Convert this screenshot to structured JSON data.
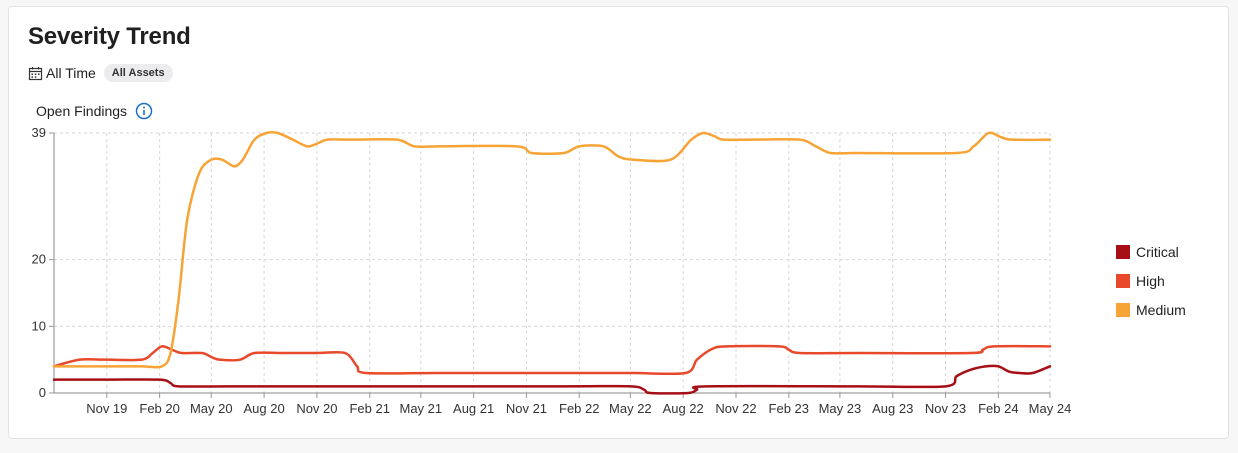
{
  "header": {
    "title": "Severity Trend",
    "period": "All Time",
    "asset_filter": "All Assets",
    "metric_label": "Open Findings"
  },
  "chart_data": {
    "type": "line",
    "title": "Severity Trend",
    "xlabel": "",
    "ylabel": "Open Findings",
    "ylim": [
      0,
      39
    ],
    "y_ticks": [
      0,
      10,
      20,
      39
    ],
    "x_ticks": [
      "Nov 19",
      "Feb 20",
      "May 20",
      "Aug 20",
      "Nov 20",
      "Feb 21",
      "May 21",
      "Aug 21",
      "Nov 21",
      "Feb 22",
      "May 22",
      "Aug 22",
      "Nov 22",
      "Feb 23",
      "May 23",
      "Aug 23",
      "Nov 23",
      "Feb 24",
      "May 24"
    ],
    "xlim": [
      "2019-08-01",
      "2024-05-01"
    ],
    "grid": true,
    "legend_position": "right",
    "series": [
      {
        "name": "Critical",
        "color": "#a50f15",
        "points": [
          [
            "2019-08-01",
            2
          ],
          [
            "2019-11-01",
            2
          ],
          [
            "2020-02-01",
            2
          ],
          [
            "2020-02-20",
            1.5
          ],
          [
            "2020-03-05",
            1
          ],
          [
            "2020-06-01",
            1
          ],
          [
            "2021-01-01",
            1
          ],
          [
            "2022-01-01",
            1
          ],
          [
            "2022-05-01",
            1
          ],
          [
            "2022-05-25",
            0.5
          ],
          [
            "2022-06-05",
            0
          ],
          [
            "2022-08-10",
            0
          ],
          [
            "2022-08-25",
            0.5
          ],
          [
            "2022-09-10",
            1
          ],
          [
            "2023-06-01",
            1
          ],
          [
            "2023-11-01",
            1
          ],
          [
            "2023-11-20",
            2.5
          ],
          [
            "2023-12-15",
            3.5
          ],
          [
            "2024-01-10",
            4
          ],
          [
            "2024-02-01",
            4
          ],
          [
            "2024-02-20",
            3.2
          ],
          [
            "2024-03-10",
            3
          ],
          [
            "2024-04-01",
            3
          ],
          [
            "2024-05-01",
            4
          ]
        ]
      },
      {
        "name": "High",
        "color": "#e8492b",
        "points": [
          [
            "2019-08-01",
            4
          ],
          [
            "2019-09-15",
            5
          ],
          [
            "2019-11-01",
            5
          ],
          [
            "2020-01-01",
            5
          ],
          [
            "2020-01-20",
            6
          ],
          [
            "2020-02-05",
            7
          ],
          [
            "2020-02-25",
            6.4
          ],
          [
            "2020-03-10",
            6
          ],
          [
            "2020-04-15",
            6
          ],
          [
            "2020-05-01",
            5.4
          ],
          [
            "2020-05-15",
            5
          ],
          [
            "2020-06-20",
            5
          ],
          [
            "2020-07-15",
            6
          ],
          [
            "2020-09-01",
            6
          ],
          [
            "2020-11-01",
            6
          ],
          [
            "2020-12-20",
            6
          ],
          [
            "2021-01-10",
            4
          ],
          [
            "2021-01-25",
            3
          ],
          [
            "2021-06-01",
            3
          ],
          [
            "2022-01-01",
            3
          ],
          [
            "2022-05-01",
            3
          ],
          [
            "2022-08-05",
            3
          ],
          [
            "2022-08-25",
            5
          ],
          [
            "2022-09-20",
            6.6
          ],
          [
            "2022-10-15",
            7
          ],
          [
            "2023-01-15",
            7
          ],
          [
            "2023-02-01",
            6.5
          ],
          [
            "2023-02-20",
            6
          ],
          [
            "2023-06-01",
            6
          ],
          [
            "2023-12-15",
            6
          ],
          [
            "2024-01-05",
            6.5
          ],
          [
            "2024-01-25",
            7
          ],
          [
            "2024-05-01",
            7
          ]
        ]
      },
      {
        "name": "Medium",
        "color": "#f7a335",
        "points": [
          [
            "2019-08-01",
            4
          ],
          [
            "2019-11-01",
            4
          ],
          [
            "2020-01-01",
            4
          ],
          [
            "2020-02-05",
            4
          ],
          [
            "2020-02-20",
            6
          ],
          [
            "2020-03-05",
            14
          ],
          [
            "2020-03-20",
            26
          ],
          [
            "2020-04-10",
            33
          ],
          [
            "2020-05-01",
            35
          ],
          [
            "2020-05-20",
            35
          ],
          [
            "2020-06-10",
            34
          ],
          [
            "2020-06-25",
            35
          ],
          [
            "2020-07-15",
            38
          ],
          [
            "2020-08-05",
            39
          ],
          [
            "2020-08-25",
            39
          ],
          [
            "2020-09-20",
            38
          ],
          [
            "2020-10-15",
            37
          ],
          [
            "2020-11-01",
            37.4
          ],
          [
            "2020-11-20",
            38
          ],
          [
            "2021-01-01",
            38
          ],
          [
            "2021-03-20",
            38
          ],
          [
            "2021-04-20",
            37
          ],
          [
            "2021-06-01",
            37
          ],
          [
            "2021-10-15",
            37
          ],
          [
            "2021-11-10",
            36
          ],
          [
            "2022-01-05",
            36
          ],
          [
            "2022-02-01",
            37
          ],
          [
            "2022-03-15",
            37
          ],
          [
            "2022-04-10",
            35.5
          ],
          [
            "2022-05-05",
            35
          ],
          [
            "2022-07-10",
            35
          ],
          [
            "2022-08-15",
            38
          ],
          [
            "2022-09-05",
            39
          ],
          [
            "2022-09-25",
            38.5
          ],
          [
            "2022-10-10",
            38
          ],
          [
            "2022-12-01",
            38
          ],
          [
            "2023-02-20",
            38
          ],
          [
            "2023-03-20",
            37
          ],
          [
            "2023-04-15",
            36
          ],
          [
            "2023-06-01",
            36
          ],
          [
            "2023-11-20",
            36
          ],
          [
            "2023-12-20",
            37
          ],
          [
            "2024-01-15",
            39
          ],
          [
            "2024-02-05",
            38.4
          ],
          [
            "2024-02-25",
            38
          ],
          [
            "2024-05-01",
            38
          ]
        ]
      }
    ]
  }
}
